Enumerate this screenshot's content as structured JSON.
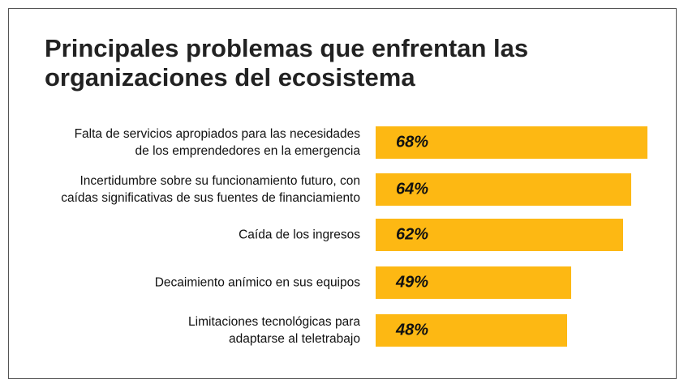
{
  "chart_data": {
    "type": "bar",
    "orientation": "horizontal",
    "title": "Principales problemas que enfrentan las organizaciones del ecosistema",
    "categories": [
      "Falta de servicios apropiados para las necesidades\nde los emprendedores en la emergencia",
      "Incertidumbre sobre su funcionamiento futuro, con\ncaídas significativas de sus fuentes de financiamiento",
      "Caída de los ingresos",
      "Decaimiento anímico en sus equipos",
      "Limitaciones tecnológicas para\nadaptarse al teletrabajo"
    ],
    "values": [
      68,
      64,
      62,
      49,
      48
    ],
    "value_labels": [
      "68%",
      "64%",
      "62%",
      "49%",
      "48%"
    ],
    "color": "#fdb813"
  }
}
